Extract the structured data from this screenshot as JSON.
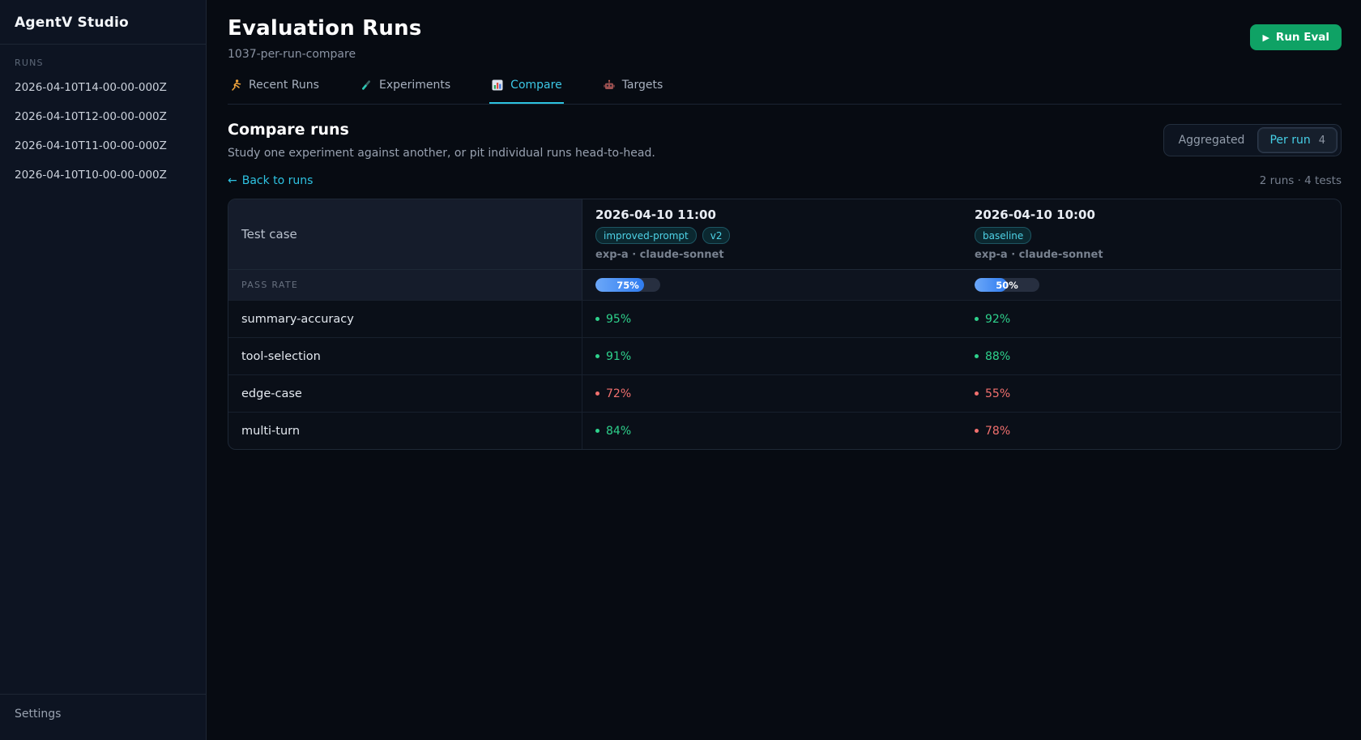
{
  "app": {
    "title": "AgentV Studio"
  },
  "sidebar": {
    "section_label": "RUNS",
    "runs": [
      "2026-04-10T14-00-00-000Z",
      "2026-04-10T12-00-00-000Z",
      "2026-04-10T11-00-00-000Z",
      "2026-04-10T10-00-00-000Z"
    ],
    "settings_label": "Settings"
  },
  "header": {
    "title": "Evaluation Runs",
    "subtitle": "1037-per-run-compare",
    "run_eval_icon": "▶",
    "run_eval_label": "Run Eval"
  },
  "tabs": [
    {
      "label": "Recent Runs",
      "icon": "runner",
      "active": false
    },
    {
      "label": "Experiments",
      "icon": "test-tube",
      "active": false
    },
    {
      "label": "Compare",
      "icon": "bar-chart",
      "active": true
    },
    {
      "label": "Targets",
      "icon": "robot",
      "active": false
    }
  ],
  "compare": {
    "heading": "Compare runs",
    "description": "Study one experiment against another, or pit individual runs head-to-head.",
    "toggle": {
      "aggregated_label": "Aggregated",
      "per_run_label": "Per run",
      "per_run_count": "4"
    },
    "back_arrow": "←",
    "back_label": "Back to runs",
    "summary": "2 runs · 4 tests"
  },
  "table": {
    "first_col_header": "Test case",
    "pass_rate_label": "PASS RATE",
    "runs": [
      {
        "datetime": "2026-04-10 11:00",
        "badges": [
          "improved-prompt",
          "v2"
        ],
        "meta": "exp-a · claude-sonnet",
        "pass_rate_percent": 75,
        "pass_rate_text": "75%"
      },
      {
        "datetime": "2026-04-10 10:00",
        "badges": [
          "baseline"
        ],
        "meta": "exp-a · claude-sonnet",
        "pass_rate_percent": 50,
        "pass_rate_text": "50%"
      }
    ],
    "rows": [
      {
        "test": "summary-accuracy",
        "values": [
          {
            "text": "95%",
            "status": "pass"
          },
          {
            "text": "92%",
            "status": "pass"
          }
        ]
      },
      {
        "test": "tool-selection",
        "values": [
          {
            "text": "91%",
            "status": "pass"
          },
          {
            "text": "88%",
            "status": "pass"
          }
        ]
      },
      {
        "test": "edge-case",
        "values": [
          {
            "text": "72%",
            "status": "fail"
          },
          {
            "text": "55%",
            "status": "fail"
          }
        ]
      },
      {
        "test": "multi-turn",
        "values": [
          {
            "text": "84%",
            "status": "pass"
          },
          {
            "text": "78%",
            "status": "fail"
          }
        ]
      }
    ]
  },
  "colors": {
    "accent_cyan": "#3cc8e6",
    "success_green": "#2ed18c",
    "danger_red": "#f2706e",
    "primary_button_green": "#0fa265",
    "pass_rate_blue": "#2f7cf0"
  }
}
